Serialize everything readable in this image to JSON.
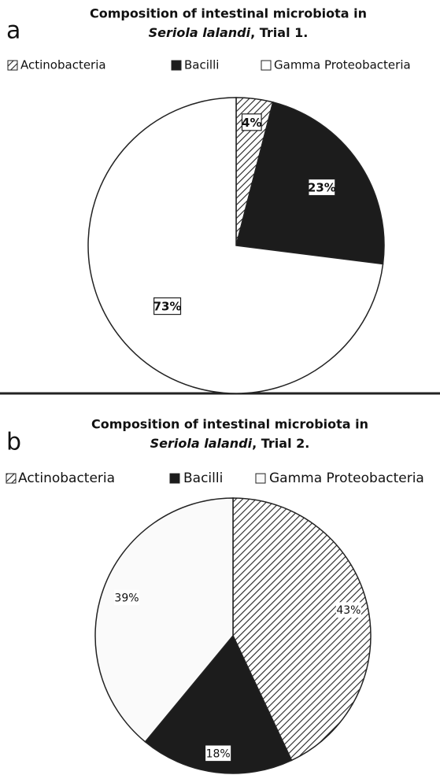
{
  "chart_data": [
    {
      "type": "pie",
      "panel": "a",
      "title": {
        "line1": "Composition of intestinal microbiota in",
        "species": "Seriola lalandi",
        "rest": ", Trial 1."
      },
      "categories": [
        "Actinobacteria",
        "Bacilli",
        "Gamma Proteobacteria"
      ],
      "values": [
        4,
        23,
        73
      ],
      "value_labels": [
        "4%",
        "23%",
        "73%"
      ],
      "fills": [
        "hatch",
        "#1c1c1c",
        "#ffffff"
      ],
      "legend": "top"
    },
    {
      "type": "pie",
      "panel": "b",
      "title": {
        "line1": "Composition of intestinal microbiota in",
        "species": "Seriola lalandi",
        "rest": ", Trial 2."
      },
      "categories": [
        "Actinobacteria",
        "Bacilli",
        "Gamma Proteobacteria"
      ],
      "values": [
        43,
        18,
        39
      ],
      "value_labels": [
        "43%",
        "18%",
        "39%"
      ],
      "fills": [
        "hatch",
        "#1c1c1c",
        "#fafafa"
      ],
      "legend": "top"
    }
  ]
}
